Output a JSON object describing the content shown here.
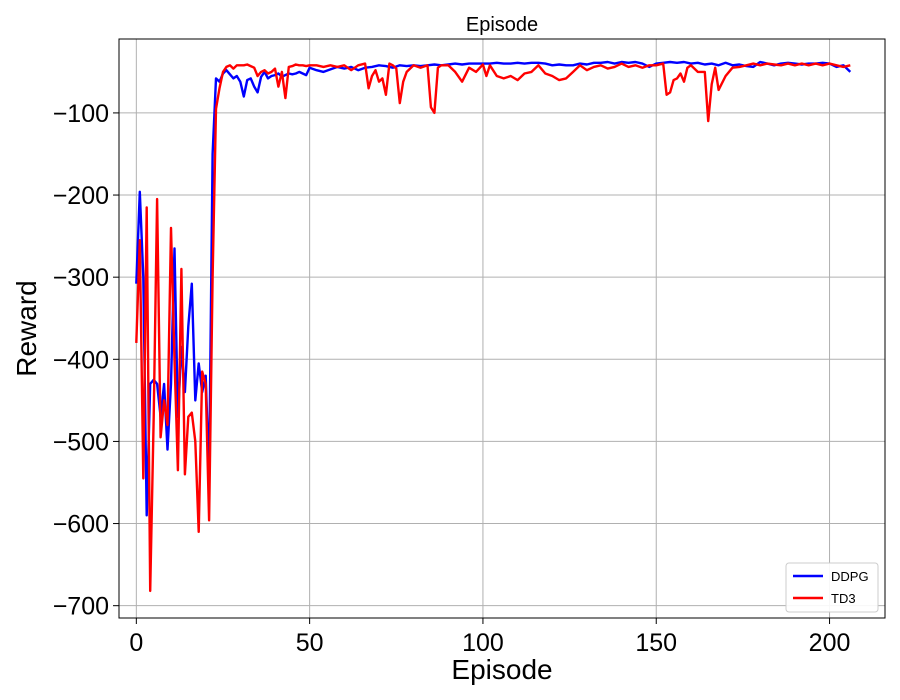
{
  "chart_data": {
    "type": "line",
    "title": "Episode",
    "xlabel": "Episode",
    "ylabel": "Reward",
    "xlim": [
      -5,
      216
    ],
    "ylim": [
      -715,
      -10
    ],
    "xticks": [
      0,
      50,
      100,
      150,
      200
    ],
    "yticks": [
      -100,
      -200,
      -300,
      -400,
      -500,
      -600,
      -700
    ],
    "ytick_labels": [
      "−100",
      "−200",
      "−300",
      "−400",
      "−500",
      "−600",
      "−700"
    ],
    "grid": true,
    "legend_position": "lower-right",
    "series": [
      {
        "name": "DDPG",
        "color": "#0000ff",
        "points": [
          [
            0,
            -308
          ],
          [
            1,
            -196
          ],
          [
            2,
            -300
          ],
          [
            3,
            -590
          ],
          [
            4,
            -430
          ],
          [
            5,
            -425
          ],
          [
            6,
            -430
          ],
          [
            7,
            -470
          ],
          [
            8,
            -430
          ],
          [
            9,
            -510
          ],
          [
            10,
            -430
          ],
          [
            11,
            -265
          ],
          [
            12,
            -470
          ],
          [
            13,
            -385
          ],
          [
            14,
            -440
          ],
          [
            15,
            -360
          ],
          [
            16,
            -308
          ],
          [
            17,
            -450
          ],
          [
            18,
            -405
          ],
          [
            19,
            -440
          ],
          [
            20,
            -420
          ],
          [
            21,
            -545
          ],
          [
            22,
            -150
          ],
          [
            23,
            -58
          ],
          [
            24,
            -62
          ],
          [
            25,
            -52
          ],
          [
            26,
            -48
          ],
          [
            27,
            -53
          ],
          [
            28,
            -58
          ],
          [
            29,
            -55
          ],
          [
            30,
            -62
          ],
          [
            31,
            -80
          ],
          [
            32,
            -60
          ],
          [
            33,
            -58
          ],
          [
            34,
            -68
          ],
          [
            35,
            -75
          ],
          [
            36,
            -56
          ],
          [
            37,
            -50
          ],
          [
            38,
            -58
          ],
          [
            39,
            -55
          ],
          [
            40,
            -54
          ],
          [
            41,
            -52
          ],
          [
            42,
            -56
          ],
          [
            43,
            -54
          ],
          [
            44,
            -52
          ],
          [
            45,
            -53
          ],
          [
            46,
            -52
          ],
          [
            47,
            -50
          ],
          [
            48,
            -52
          ],
          [
            49,
            -54
          ],
          [
            50,
            -45
          ],
          [
            52,
            -48
          ],
          [
            54,
            -50
          ],
          [
            56,
            -47
          ],
          [
            58,
            -44
          ],
          [
            60,
            -46
          ],
          [
            62,
            -44
          ],
          [
            64,
            -48
          ],
          [
            66,
            -45
          ],
          [
            68,
            -44
          ],
          [
            70,
            -42
          ],
          [
            72,
            -43
          ],
          [
            74,
            -45
          ],
          [
            76,
            -42
          ],
          [
            78,
            -43
          ],
          [
            80,
            -42
          ],
          [
            82,
            -43
          ],
          [
            84,
            -42
          ],
          [
            86,
            -41
          ],
          [
            88,
            -42
          ],
          [
            90,
            -41
          ],
          [
            92,
            -40
          ],
          [
            94,
            -41
          ],
          [
            96,
            -40
          ],
          [
            98,
            -40
          ],
          [
            100,
            -40
          ],
          [
            102,
            -40
          ],
          [
            104,
            -39
          ],
          [
            106,
            -40
          ],
          [
            108,
            -40
          ],
          [
            110,
            -39
          ],
          [
            112,
            -40
          ],
          [
            114,
            -39
          ],
          [
            116,
            -39
          ],
          [
            118,
            -40
          ],
          [
            120,
            -42
          ],
          [
            122,
            -41
          ],
          [
            124,
            -42
          ],
          [
            126,
            -42
          ],
          [
            128,
            -40
          ],
          [
            130,
            -41
          ],
          [
            132,
            -39
          ],
          [
            134,
            -39
          ],
          [
            136,
            -38
          ],
          [
            138,
            -40
          ],
          [
            140,
            -38
          ],
          [
            142,
            -39
          ],
          [
            144,
            -38
          ],
          [
            146,
            -40
          ],
          [
            148,
            -44
          ],
          [
            150,
            -40
          ],
          [
            152,
            -39
          ],
          [
            154,
            -38
          ],
          [
            156,
            -39
          ],
          [
            158,
            -38
          ],
          [
            160,
            -40
          ],
          [
            162,
            -39
          ],
          [
            164,
            -41
          ],
          [
            166,
            -40
          ],
          [
            168,
            -42
          ],
          [
            170,
            -39
          ],
          [
            172,
            -42
          ],
          [
            174,
            -41
          ],
          [
            176,
            -43
          ],
          [
            178,
            -44
          ],
          [
            180,
            -38
          ],
          [
            182,
            -40
          ],
          [
            184,
            -42
          ],
          [
            186,
            -40
          ],
          [
            188,
            -39
          ],
          [
            190,
            -40
          ],
          [
            192,
            -41
          ],
          [
            194,
            -40
          ],
          [
            196,
            -40
          ],
          [
            198,
            -39
          ],
          [
            200,
            -40
          ],
          [
            202,
            -44
          ],
          [
            204,
            -42
          ],
          [
            206,
            -50
          ]
        ]
      },
      {
        "name": "TD3",
        "color": "#ff0000",
        "points": [
          [
            0,
            -380
          ],
          [
            1,
            -255
          ],
          [
            2,
            -545
          ],
          [
            3,
            -215
          ],
          [
            4,
            -682
          ],
          [
            5,
            -470
          ],
          [
            6,
            -205
          ],
          [
            7,
            -495
          ],
          [
            8,
            -450
          ],
          [
            9,
            -480
          ],
          [
            10,
            -240
          ],
          [
            11,
            -400
          ],
          [
            12,
            -535
          ],
          [
            13,
            -290
          ],
          [
            14,
            -540
          ],
          [
            15,
            -470
          ],
          [
            16,
            -465
          ],
          [
            17,
            -500
          ],
          [
            18,
            -610
          ],
          [
            19,
            -415
          ],
          [
            20,
            -430
          ],
          [
            21,
            -596
          ],
          [
            22,
            -300
          ],
          [
            23,
            -95
          ],
          [
            24,
            -70
          ],
          [
            25,
            -50
          ],
          [
            26,
            -44
          ],
          [
            27,
            -42
          ],
          [
            28,
            -46
          ],
          [
            29,
            -42
          ],
          [
            30,
            -42
          ],
          [
            31,
            -42
          ],
          [
            32,
            -41
          ],
          [
            33,
            -43
          ],
          [
            34,
            -45
          ],
          [
            35,
            -55
          ],
          [
            36,
            -50
          ],
          [
            37,
            -48
          ],
          [
            38,
            -52
          ],
          [
            39,
            -50
          ],
          [
            40,
            -46
          ],
          [
            41,
            -68
          ],
          [
            42,
            -50
          ],
          [
            43,
            -82
          ],
          [
            44,
            -44
          ],
          [
            45,
            -43
          ],
          [
            46,
            -41
          ],
          [
            47,
            -42
          ],
          [
            48,
            -42
          ],
          [
            49,
            -43
          ],
          [
            50,
            -42
          ],
          [
            52,
            -42
          ],
          [
            54,
            -44
          ],
          [
            56,
            -42
          ],
          [
            58,
            -44
          ],
          [
            60,
            -42
          ],
          [
            62,
            -48
          ],
          [
            64,
            -42
          ],
          [
            66,
            -40
          ],
          [
            67,
            -70
          ],
          [
            68,
            -55
          ],
          [
            69,
            -48
          ],
          [
            70,
            -62
          ],
          [
            71,
            -58
          ],
          [
            72,
            -78
          ],
          [
            73,
            -40
          ],
          [
            74,
            -42
          ],
          [
            75,
            -46
          ],
          [
            76,
            -88
          ],
          [
            77,
            -62
          ],
          [
            78,
            -50
          ],
          [
            80,
            -42
          ],
          [
            82,
            -45
          ],
          [
            84,
            -42
          ],
          [
            85,
            -93
          ],
          [
            86,
            -100
          ],
          [
            87,
            -45
          ],
          [
            88,
            -42
          ],
          [
            90,
            -42
          ],
          [
            92,
            -50
          ],
          [
            94,
            -62
          ],
          [
            96,
            -45
          ],
          [
            98,
            -50
          ],
          [
            100,
            -41
          ],
          [
            101,
            -55
          ],
          [
            102,
            -42
          ],
          [
            104,
            -55
          ],
          [
            106,
            -58
          ],
          [
            108,
            -55
          ],
          [
            110,
            -60
          ],
          [
            112,
            -52
          ],
          [
            114,
            -50
          ],
          [
            116,
            -42
          ],
          [
            118,
            -52
          ],
          [
            120,
            -55
          ],
          [
            122,
            -60
          ],
          [
            124,
            -58
          ],
          [
            126,
            -50
          ],
          [
            128,
            -42
          ],
          [
            130,
            -48
          ],
          [
            132,
            -44
          ],
          [
            134,
            -42
          ],
          [
            136,
            -46
          ],
          [
            138,
            -44
          ],
          [
            140,
            -40
          ],
          [
            142,
            -44
          ],
          [
            144,
            -42
          ],
          [
            146,
            -45
          ],
          [
            148,
            -42
          ],
          [
            150,
            -42
          ],
          [
            152,
            -40
          ],
          [
            153,
            -78
          ],
          [
            154,
            -75
          ],
          [
            155,
            -60
          ],
          [
            156,
            -58
          ],
          [
            157,
            -52
          ],
          [
            158,
            -62
          ],
          [
            159,
            -45
          ],
          [
            160,
            -42
          ],
          [
            162,
            -50
          ],
          [
            164,
            -50
          ],
          [
            165,
            -110
          ],
          [
            166,
            -65
          ],
          [
            167,
            -45
          ],
          [
            168,
            -72
          ],
          [
            170,
            -55
          ],
          [
            172,
            -45
          ],
          [
            174,
            -44
          ],
          [
            176,
            -42
          ],
          [
            178,
            -40
          ],
          [
            180,
            -42
          ],
          [
            182,
            -40
          ],
          [
            184,
            -41
          ],
          [
            186,
            -42
          ],
          [
            188,
            -40
          ],
          [
            190,
            -42
          ],
          [
            192,
            -40
          ],
          [
            194,
            -42
          ],
          [
            196,
            -40
          ],
          [
            198,
            -42
          ],
          [
            200,
            -40
          ],
          [
            202,
            -42
          ],
          [
            204,
            -44
          ],
          [
            206,
            -42
          ]
        ]
      }
    ]
  }
}
